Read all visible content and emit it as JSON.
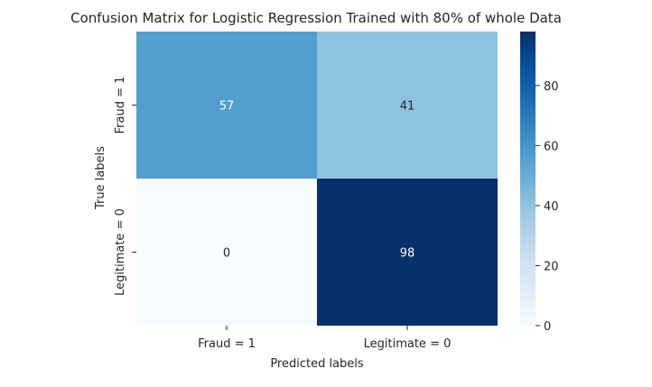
{
  "chart_data": {
    "type": "heatmap",
    "title": "Confusion Matrix for Logistic Regression Trained with 80% of whole Data",
    "xlabel": "Predicted labels",
    "ylabel": "True labels",
    "x_categories": [
      "Fraud = 1",
      "Legitimate = 0"
    ],
    "y_categories": [
      "Fraud = 1",
      "Legitimate = 0"
    ],
    "matrix": [
      [
        57,
        41
      ],
      [
        0,
        98
      ]
    ],
    "colormap": "Blues",
    "colorbar": {
      "min": 0,
      "max": 98,
      "ticks": [
        0,
        20,
        40,
        60,
        80
      ]
    },
    "colors": {
      "c57": "#539ecd",
      "c41": "#8fc2de",
      "c0": "#f7fbff",
      "c98": "#08306b"
    }
  }
}
